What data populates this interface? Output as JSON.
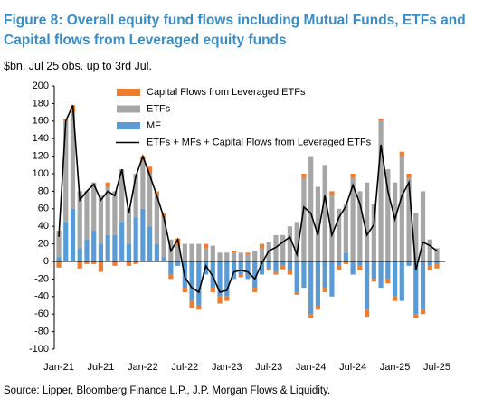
{
  "chart_data": {
    "type": "bar",
    "title": "Figure 8: Overall equity fund flows including Mutual Funds, ETFs and Capital flows from Leveraged equity funds",
    "subtitle": "$bn. Jul 25 obs. up to 3rd Jul.",
    "source": "Source: Lipper, Bloomberg Finance L.P., J.P. Morgan Flows & Liquidity.",
    "categories": [
      "Jan-21",
      null,
      null,
      null,
      null,
      null,
      "Jul-21",
      null,
      null,
      null,
      null,
      null,
      "Jan-22",
      null,
      null,
      null,
      null,
      null,
      "Jul-22",
      null,
      null,
      null,
      null,
      null,
      "Jan-23",
      null,
      null,
      null,
      null,
      null,
      "Jul-23",
      null,
      null,
      null,
      null,
      null,
      "Jan-24",
      null,
      null,
      null,
      null,
      null,
      "Jul-24",
      null,
      null,
      null,
      null,
      null,
      "Jan-25",
      null,
      null,
      null,
      null,
      null,
      "Jul-25"
    ],
    "series": [
      {
        "name": "Capital Flows from Leveraged ETFs",
        "color": "#ed7d31",
        "type": "bar",
        "values": [
          -7,
          2,
          8,
          -8,
          -3,
          -3,
          -12,
          5,
          -5,
          0,
          -5,
          -3,
          5,
          8,
          5,
          5,
          -5,
          8,
          -5,
          -8,
          -5,
          5,
          -5,
          -8,
          -5,
          2,
          -3,
          2,
          -5,
          5,
          -2,
          -3,
          -4,
          -5,
          -3,
          5,
          -5,
          -5,
          -5,
          5,
          -5,
          -3,
          5,
          -5,
          -8,
          -3,
          3,
          -5,
          -5,
          5,
          5,
          -5,
          -5,
          -5,
          -5
        ]
      },
      {
        "name": "ETFs",
        "color": "#a6a6a6",
        "type": "bar",
        "values": [
          30,
          115,
          110,
          65,
          55,
          55,
          55,
          55,
          50,
          60,
          40,
          50,
          55,
          60,
          55,
          45,
          25,
          18,
          20,
          20,
          20,
          15,
          18,
          10,
          10,
          10,
          10,
          8,
          12,
          15,
          22,
          30,
          30,
          40,
          45,
          95,
          120,
          85,
          110,
          75,
          60,
          55,
          95,
          80,
          90,
          65,
          160,
          105,
          90,
          120,
          95,
          55,
          80,
          25,
          15
        ]
      },
      {
        "name": "MF",
        "color": "#5b9bd5",
        "type": "bar",
        "values": [
          5,
          45,
          60,
          15,
          25,
          35,
          20,
          30,
          30,
          45,
          20,
          50,
          60,
          40,
          20,
          5,
          -15,
          -5,
          -30,
          -45,
          -50,
          -15,
          -30,
          -40,
          -40,
          -20,
          -15,
          -20,
          -30,
          -15,
          -8,
          -12,
          -5,
          -10,
          -35,
          -30,
          -60,
          -50,
          -30,
          -40,
          -5,
          10,
          -15,
          -5,
          -55,
          -20,
          -30,
          -20,
          -40,
          -45,
          -5,
          -60,
          -55,
          -5,
          -3
        ]
      },
      {
        "name": "ETFs + MFs + Capital Flows from Leveraged ETFs",
        "color": "#000000",
        "type": "line",
        "values": [
          28,
          160,
          178,
          70,
          80,
          88,
          70,
          80,
          75,
          105,
          55,
          97,
          120,
          98,
          75,
          50,
          12,
          25,
          -18,
          -30,
          -35,
          -5,
          -17,
          -35,
          -33,
          -12,
          -10,
          -12,
          -20,
          -2,
          12,
          16,
          22,
          28,
          8,
          62,
          55,
          30,
          75,
          30,
          50,
          63,
          87,
          66,
          30,
          42,
          133,
          80,
          48,
          75,
          90,
          -10,
          22,
          18,
          12
        ]
      }
    ],
    "ylim": [
      -100,
      200
    ],
    "yticks": [
      -100,
      -80,
      -60,
      -40,
      -20,
      0,
      20,
      40,
      60,
      80,
      100,
      120,
      140,
      160,
      180,
      200
    ]
  }
}
